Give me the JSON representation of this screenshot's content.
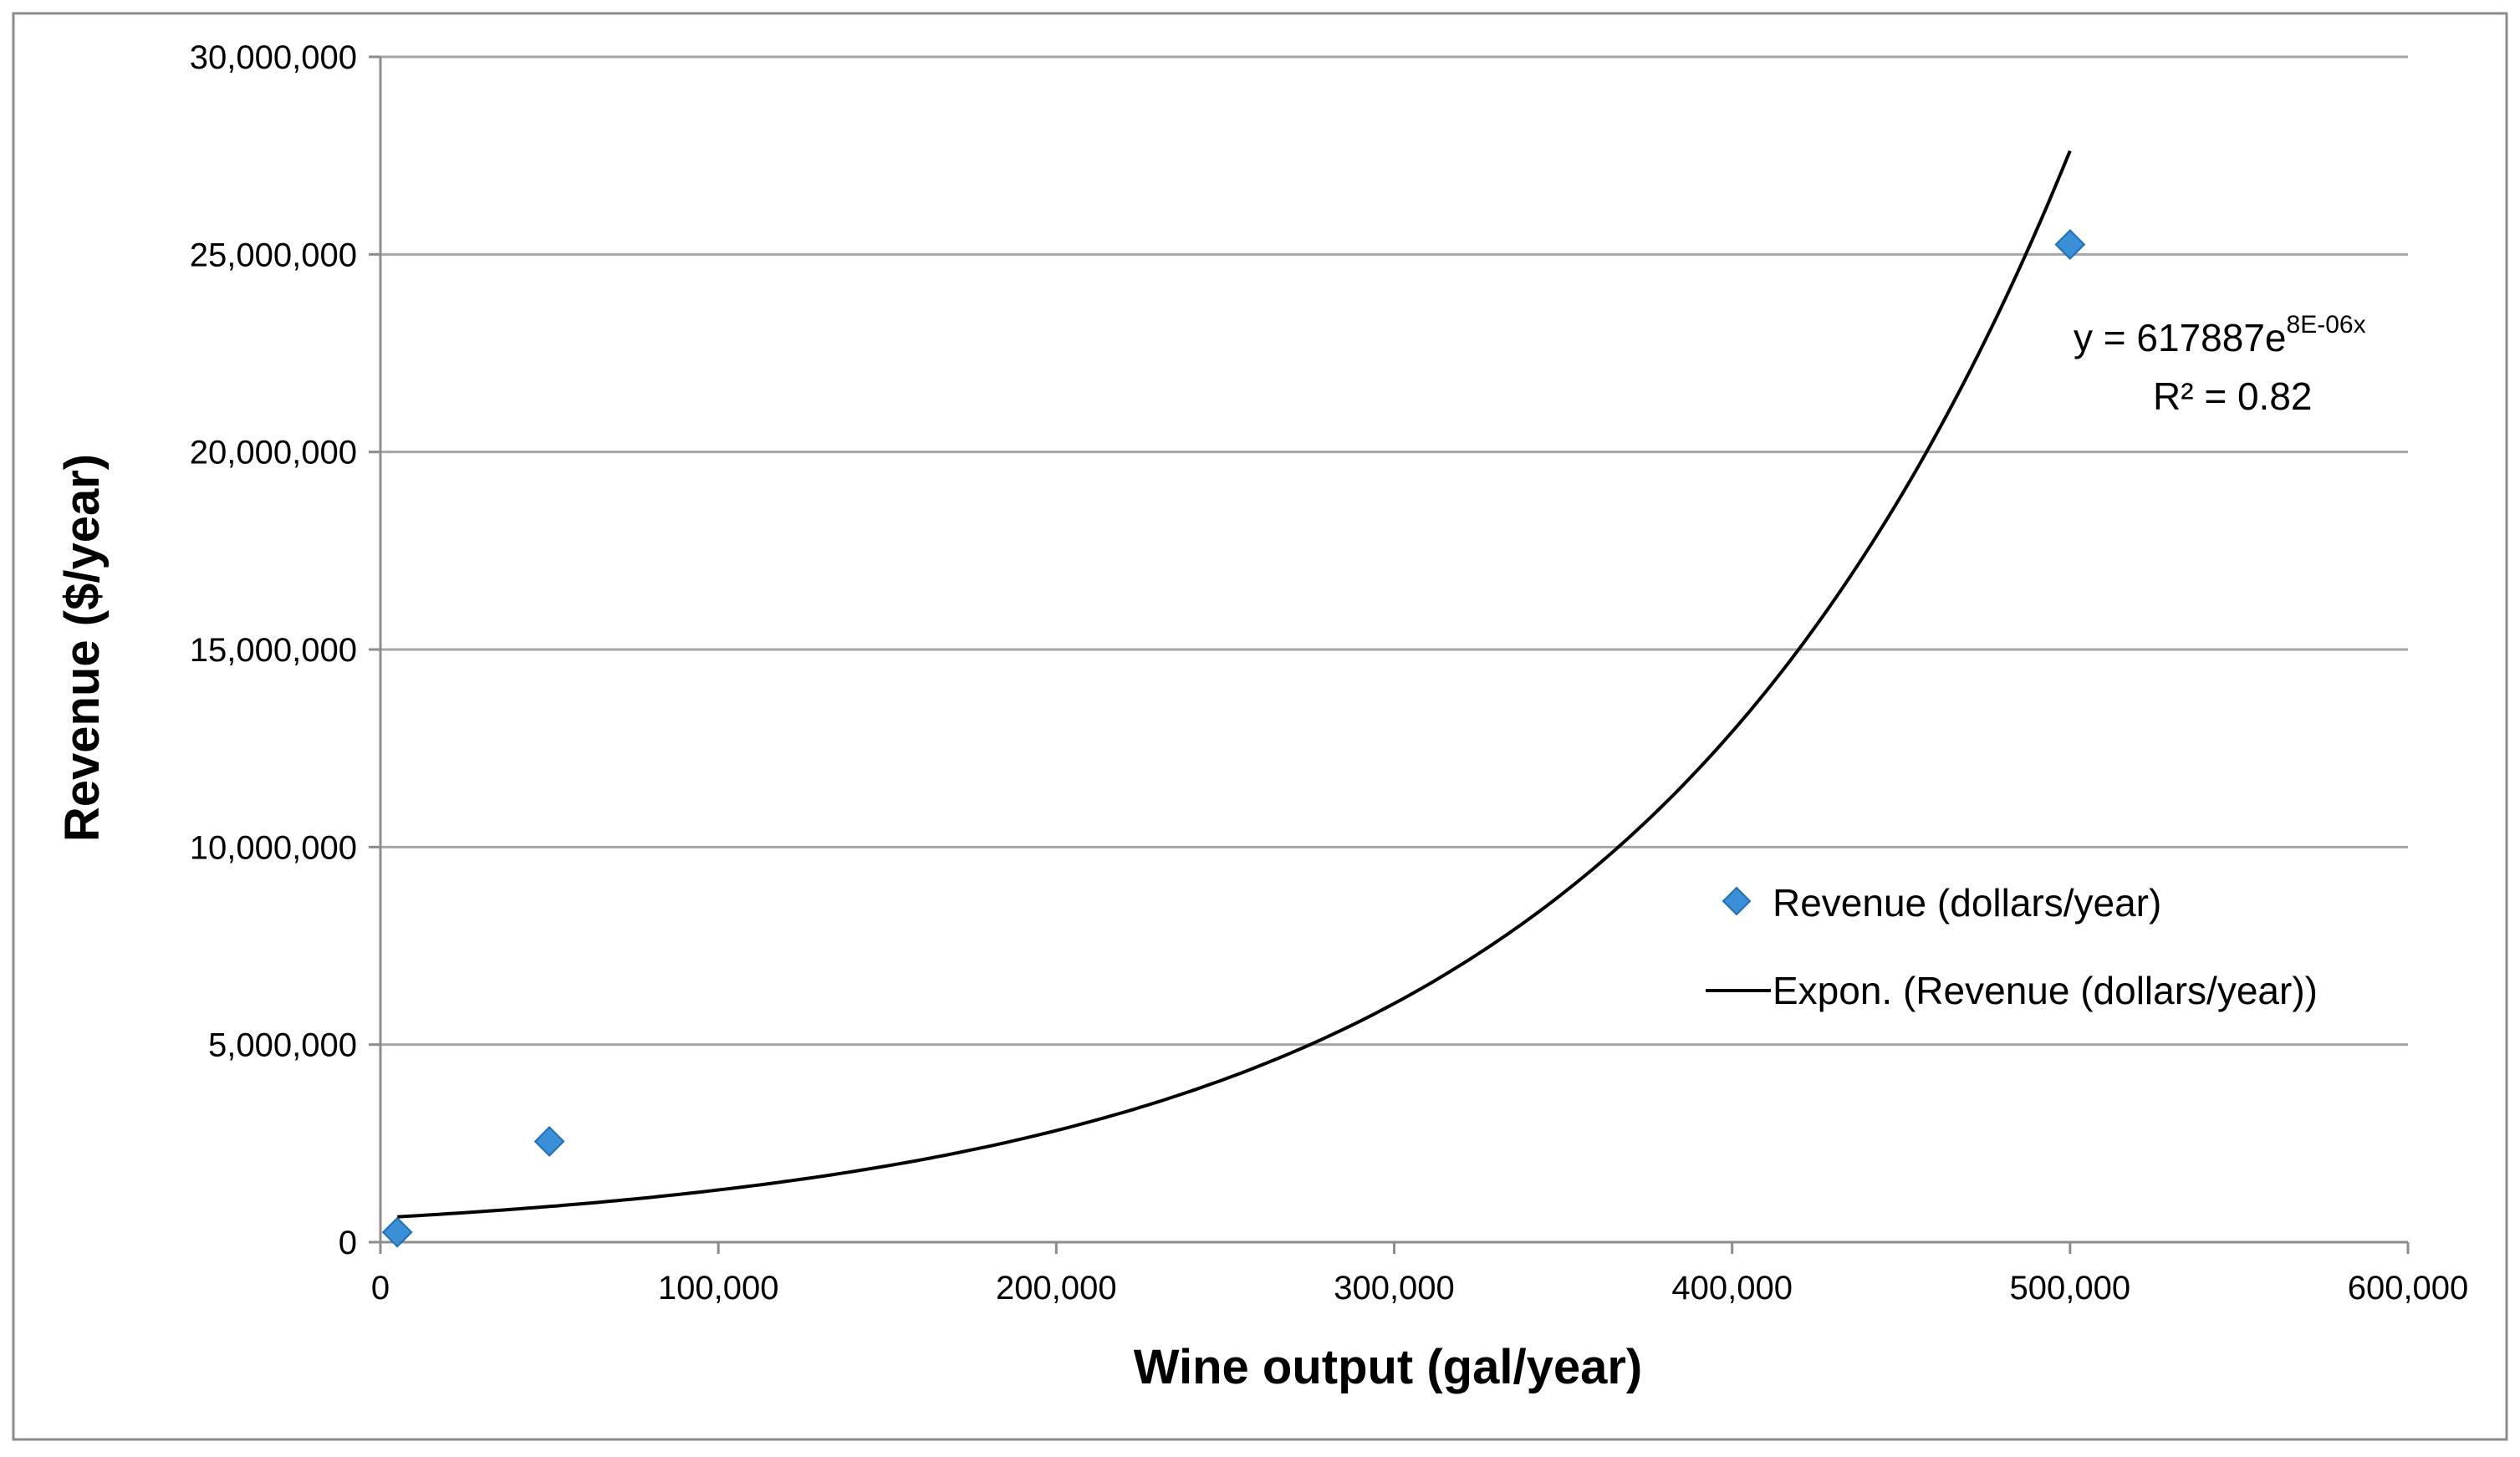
{
  "chart_data": {
    "type": "scatter",
    "title": "",
    "xlabel": "Wine output (gal/year)",
    "ylabel": "Revenue ($/year)",
    "xlim": [
      0,
      600000
    ],
    "ylim": [
      0,
      30000000
    ],
    "x_ticks": [
      0,
      100000,
      200000,
      300000,
      400000,
      500000,
      600000
    ],
    "y_ticks": [
      0,
      5000000,
      10000000,
      15000000,
      20000000,
      25000000,
      30000000
    ],
    "x_tick_labels": [
      "0",
      "100,000",
      "200,000",
      "300,000",
      "400,000",
      "500,000",
      "600,000"
    ],
    "y_tick_labels": [
      "0",
      "5,000,000",
      "10,000,000",
      "15,000,000",
      "20,000,000",
      "25,000,000",
      "30,000,000"
    ],
    "grid": "horizontal",
    "series": [
      {
        "name": "Revenue (dollars/year)",
        "kind": "scatter",
        "marker": "diamond",
        "color": "#3b8fd6",
        "points": [
          {
            "x": 5000,
            "y": 250000
          },
          {
            "x": 50000,
            "y": 2550000
          },
          {
            "x": 500000,
            "y": 25250000
          }
        ]
      },
      {
        "name": "Expon. (Revenue (dollars/year))",
        "kind": "trendline",
        "fit": "exponential",
        "coefficient": 617887,
        "rate": 7.6e-06,
        "x_range": [
          5000,
          500000
        ],
        "color": "#000000"
      }
    ],
    "equation": {
      "base": "y = 617887e",
      "exponent": "8E-06x",
      "r2": "R² = 0.82"
    },
    "legend": {
      "placement": "right-middle",
      "entries": [
        "Revenue (dollars/year)",
        "Expon. (Revenue (dollars/year))"
      ]
    }
  }
}
